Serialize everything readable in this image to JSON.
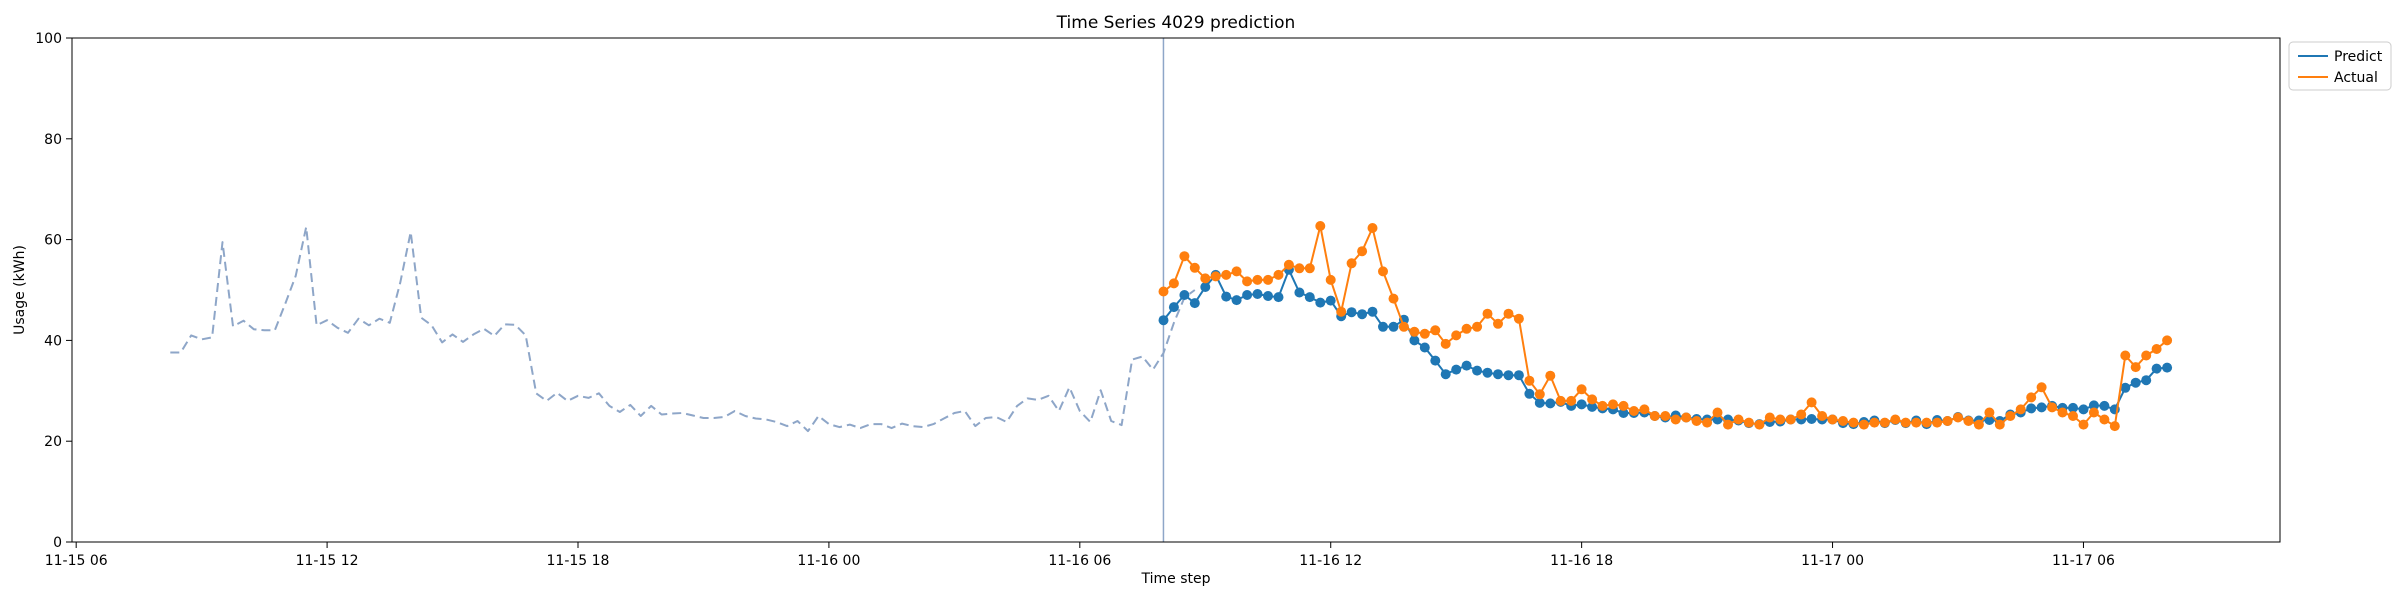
{
  "chart_data": {
    "type": "line",
    "title": "Time Series 4029 prediction",
    "xlabel": "Time step",
    "ylabel": "Usage (kWh)",
    "ylim": [
      0,
      100
    ],
    "y_ticks": [
      0,
      20,
      40,
      60,
      80,
      100
    ],
    "x_ticks": [
      "11-15 06",
      "11-15 12",
      "11-15 18",
      "11-16 00",
      "11-16 06",
      "11-16 12",
      "11-16 18",
      "11-17 00",
      "11-17 06"
    ],
    "xlim_hours": [
      -0.1,
      52.7
    ],
    "prediction_start_hour": 26.0,
    "grid": false,
    "legend": {
      "placement": "top-right outside",
      "entries": [
        "Predict",
        "Actual"
      ]
    },
    "colors": {
      "predict": "#1f77b4",
      "actual": "#ff7f0e",
      "history": "#8ea6c8",
      "divider": "#8ea6c8"
    },
    "series": [
      {
        "key": "history",
        "style": "dashed",
        "x_hours_start": 2.25,
        "x_step_hours": 0.25,
        "values": [
          37.6,
          37.6,
          41.0,
          40.2,
          40.6,
          59.5,
          42.8,
          43.9,
          42.2,
          42.0,
          42.0,
          47.3,
          52.8,
          62.5,
          43.0,
          44.0,
          42.5,
          41.5,
          44.3,
          43.0,
          44.3,
          43.5,
          51.5,
          61.5,
          44.5,
          43.0,
          39.6,
          41.2,
          39.7,
          41.2,
          42.3,
          40.9,
          43.2,
          43.1,
          41.0,
          29.5,
          28.0,
          29.6,
          28.0,
          29.0,
          28.6,
          29.5,
          27.0,
          25.8,
          27.2,
          25.0,
          27.0,
          25.3,
          25.5,
          25.6,
          25.1,
          24.6,
          24.6,
          24.8,
          26.0,
          25.0,
          24.5,
          24.3,
          23.8,
          23.0,
          24.0,
          22.0,
          25.0,
          23.4,
          22.8,
          23.3,
          22.6,
          23.4,
          23.4,
          22.6,
          23.5,
          23.0,
          22.8,
          23.4,
          24.5,
          25.6,
          26.0,
          23.0,
          24.6,
          24.8,
          23.8,
          27.0,
          28.5,
          28.2,
          29.0,
          26.0,
          30.7,
          26.0,
          23.8,
          30.1,
          24.0,
          23.2,
          36.2,
          36.8,
          34.2,
          37.5,
          43.5,
          48.5,
          50.0
        ]
      },
      {
        "key": "predict",
        "name": "Predict",
        "style": "solid-markers",
        "x_hours_start": 26.0,
        "x_step_hours": 0.25,
        "values": [
          44.0,
          46.6,
          49.0,
          47.4,
          50.6,
          53.0,
          48.7,
          48.0,
          49.0,
          49.2,
          48.8,
          48.6,
          54.0,
          49.5,
          48.6,
          47.5,
          47.9,
          44.8,
          45.6,
          45.2,
          45.7,
          42.7,
          42.7,
          44.1,
          40.0,
          38.6,
          36.0,
          33.3,
          34.2,
          35.0,
          34.0,
          33.6,
          33.3,
          33.1,
          33.1,
          29.4,
          27.6,
          27.5,
          27.8,
          27.0,
          27.3,
          26.8,
          26.5,
          26.3,
          25.6,
          25.6,
          25.7,
          25.0,
          24.7,
          25.1,
          24.7,
          24.4,
          24.3,
          24.3,
          24.3,
          24.1,
          23.6,
          23.4,
          23.8,
          23.9,
          24.3,
          24.3,
          24.4,
          24.3,
          24.3,
          23.6,
          23.4,
          23.8,
          24.1,
          23.6,
          24.2,
          23.6,
          24.1,
          23.4,
          24.2,
          24.0,
          24.8,
          24.1,
          24.1,
          24.2,
          24.0,
          25.3,
          25.7,
          26.5,
          26.7,
          27.0,
          26.6,
          26.6,
          26.3,
          27.1,
          27.0,
          26.3,
          30.6,
          31.6,
          32.1,
          34.4,
          34.6
        ]
      },
      {
        "key": "actual",
        "name": "Actual",
        "style": "solid-markers",
        "x_hours_start": 26.0,
        "x_step_hours": 0.25,
        "values": [
          49.7,
          51.3,
          56.7,
          54.4,
          52.3,
          52.7,
          53.0,
          53.7,
          51.7,
          52.0,
          52.0,
          53.0,
          55.0,
          54.3,
          54.3,
          62.7,
          52.0,
          45.7,
          55.3,
          57.7,
          62.3,
          53.7,
          48.3,
          42.7,
          41.7,
          41.3,
          42.0,
          39.3,
          41.0,
          42.3,
          42.7,
          45.3,
          43.3,
          45.3,
          44.3,
          32.0,
          29.3,
          33.0,
          28.0,
          28.0,
          30.3,
          28.3,
          27.0,
          27.3,
          27.0,
          26.0,
          26.3,
          25.0,
          25.0,
          24.3,
          24.7,
          24.0,
          23.7,
          25.7,
          23.3,
          24.3,
          23.7,
          23.3,
          24.7,
          24.3,
          24.3,
          25.3,
          27.7,
          25.0,
          24.3,
          24.0,
          23.7,
          23.3,
          23.7,
          23.7,
          24.3,
          23.7,
          23.7,
          23.7,
          23.7,
          24.0,
          24.7,
          24.0,
          23.3,
          25.7,
          23.3,
          25.0,
          26.3,
          28.7,
          30.7,
          26.7,
          25.7,
          25.0,
          23.3,
          25.7,
          24.3,
          23.0,
          37.0,
          34.7,
          37.0,
          38.3,
          40.0
        ]
      }
    ]
  }
}
